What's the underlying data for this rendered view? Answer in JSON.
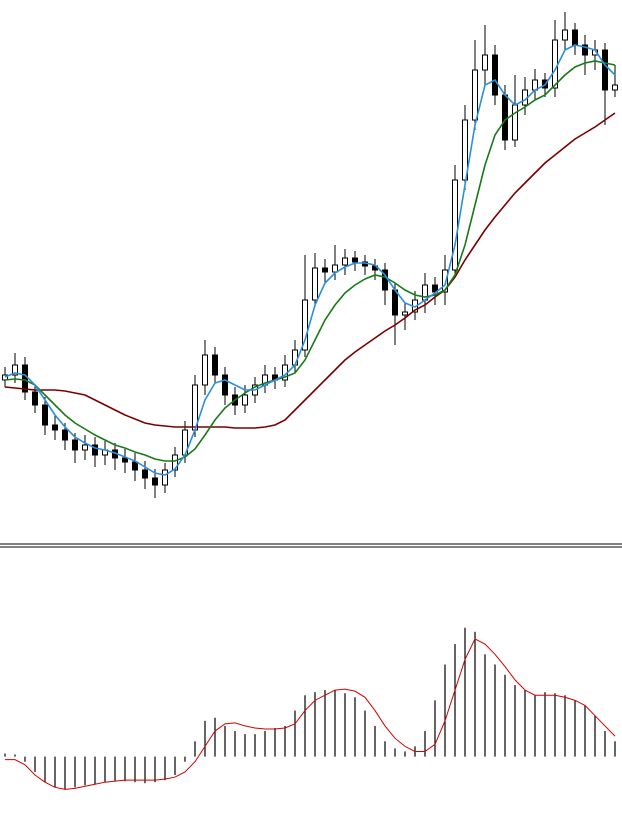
{
  "chart_data": [
    {
      "type": "candlestick",
      "ylim": [
        0,
        545
      ],
      "up_color": "#ffffff",
      "down_color": "#000000",
      "open": [
        165,
        170,
        180,
        153,
        140,
        120,
        115,
        105,
        95,
        100,
        90,
        95,
        87,
        83,
        75,
        67,
        60,
        75,
        90,
        115,
        160,
        190,
        170,
        150,
        140,
        150,
        160,
        170,
        165,
        180,
        195,
        245,
        277,
        273,
        280,
        287,
        283,
        279,
        275,
        255,
        230,
        233,
        245,
        260,
        253,
        275,
        365,
        425,
        475,
        490,
        450,
        405,
        440,
        455,
        465,
        457,
        505,
        515,
        500,
        490,
        495,
        455
      ],
      "high": [
        178,
        192,
        188,
        160,
        148,
        130,
        122,
        112,
        110,
        108,
        104,
        102,
        96,
        92,
        84,
        76,
        82,
        98,
        124,
        170,
        205,
        198,
        178,
        158,
        160,
        168,
        180,
        178,
        190,
        205,
        290,
        292,
        286,
        300,
        296,
        294,
        290,
        286,
        282,
        262,
        242,
        254,
        272,
        268,
        290,
        380,
        440,
        505,
        520,
        500,
        460,
        470,
        468,
        476,
        472,
        525,
        533,
        522,
        510,
        505,
        502,
        480
      ],
      "low": [
        158,
        162,
        145,
        132,
        110,
        105,
        95,
        82,
        85,
        78,
        80,
        75,
        72,
        64,
        56,
        47,
        52,
        68,
        82,
        108,
        150,
        162,
        140,
        130,
        132,
        142,
        152,
        156,
        158,
        172,
        188,
        238,
        262,
        265,
        270,
        274,
        270,
        265,
        240,
        200,
        215,
        225,
        232,
        240,
        240,
        268,
        355,
        415,
        460,
        440,
        395,
        398,
        430,
        445,
        448,
        448,
        495,
        490,
        470,
        475,
        420,
        448
      ],
      "close": [
        170,
        180,
        153,
        140,
        120,
        115,
        105,
        95,
        100,
        90,
        95,
        87,
        83,
        75,
        67,
        60,
        75,
        90,
        115,
        160,
        190,
        170,
        150,
        140,
        150,
        160,
        170,
        165,
        180,
        195,
        245,
        277,
        273,
        280,
        287,
        283,
        279,
        275,
        255,
        230,
        233,
        245,
        260,
        253,
        275,
        365,
        425,
        475,
        490,
        450,
        405,
        440,
        455,
        465,
        457,
        505,
        515,
        500,
        490,
        495,
        455,
        460
      ],
      "overlays": [
        {
          "color": "#7a0000",
          "values": [
            158,
            157,
            156,
            155,
            155,
            155,
            154,
            152,
            150,
            145,
            140,
            135,
            130,
            126,
            122,
            120,
            119,
            118,
            118,
            118,
            118,
            118,
            118,
            117,
            117,
            117,
            118,
            120,
            125,
            135,
            145,
            155,
            165,
            175,
            185,
            193,
            200,
            207,
            214,
            220,
            227,
            235,
            240,
            248,
            255,
            268,
            285,
            300,
            315,
            328,
            340,
            352,
            362,
            372,
            382,
            390,
            398,
            406,
            412,
            418,
            425,
            432
          ]
        },
        {
          "color": "#1a7a1a",
          "values": [
            165,
            166,
            165,
            160,
            150,
            140,
            130,
            122,
            116,
            110,
            105,
            100,
            97,
            93,
            90,
            86,
            84,
            84,
            88,
            96,
            110,
            125,
            137,
            145,
            152,
            158,
            162,
            165,
            168,
            172,
            185,
            205,
            225,
            240,
            252,
            260,
            266,
            270,
            268,
            262,
            255,
            250,
            248,
            250,
            255,
            270,
            300,
            340,
            380,
            410,
            425,
            432,
            438,
            445,
            450,
            460,
            470,
            478,
            482,
            484,
            482,
            480
          ]
        },
        {
          "color": "#2a8fe0",
          "values": [
            168,
            172,
            170,
            160,
            145,
            130,
            118,
            108,
            102,
            97,
            95,
            92,
            88,
            84,
            78,
            72,
            70,
            76,
            90,
            115,
            145,
            162,
            165,
            160,
            155,
            155,
            160,
            165,
            170,
            180,
            205,
            240,
            262,
            272,
            278,
            282,
            282,
            280,
            270,
            255,
            242,
            238,
            245,
            252,
            260,
            300,
            360,
            420,
            460,
            465,
            450,
            440,
            445,
            455,
            460,
            475,
            495,
            500,
            498,
            495,
            480,
            470
          ]
        }
      ]
    },
    {
      "type": "macd",
      "ylim": [
        -60,
        200
      ],
      "series": [
        {
          "type": "bar",
          "color": "#000000",
          "values": [
            3,
            2,
            -5,
            -15,
            -25,
            -30,
            -32,
            -30,
            -28,
            -27,
            -25,
            -24,
            -24,
            -25,
            -26,
            -25,
            -23,
            -18,
            -5,
            15,
            35,
            38,
            30,
            25,
            22,
            22,
            25,
            28,
            30,
            45,
            60,
            63,
            65,
            65,
            62,
            58,
            45,
            30,
            15,
            8,
            5,
            10,
            25,
            55,
            90,
            110,
            126,
            122,
            100,
            90,
            80,
            70,
            65,
            60,
            63,
            62,
            60,
            55,
            50,
            40,
            25,
            15
          ]
        },
        {
          "type": "line",
          "color": "#d00000",
          "values": [
            -3,
            -3,
            -8,
            -18,
            -25,
            -30,
            -32,
            -31,
            -29,
            -27,
            -25,
            -24,
            -23,
            -23,
            -23,
            -23,
            -22,
            -20,
            -15,
            -5,
            10,
            25,
            32,
            33,
            30,
            28,
            27,
            27,
            28,
            32,
            45,
            55,
            60,
            65,
            66,
            64,
            58,
            45,
            30,
            18,
            10,
            5,
            5,
            12,
            35,
            65,
            95,
            115,
            110,
            100,
            88,
            75,
            65,
            60,
            60,
            60,
            58,
            55,
            50,
            40,
            30,
            20
          ]
        }
      ]
    }
  ]
}
